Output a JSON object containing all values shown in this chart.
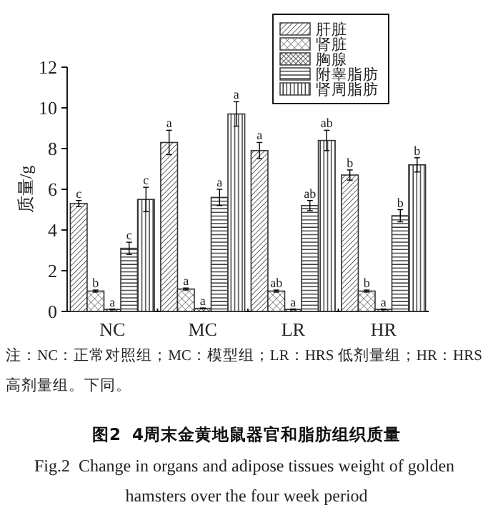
{
  "chart_data": {
    "type": "bar",
    "title": "图2  4周末金黄地鼠器官和脂肪组织质量",
    "subtitle": "Fig.2  Change in organs and adipose tissues weight of golden hamsters over the four week period",
    "ylabel": "质量/g",
    "categories": [
      "NC",
      "MC",
      "LR",
      "HR"
    ],
    "series": [
      {
        "name": "肝脏",
        "color": "#333333",
        "values": [
          5.3,
          8.3,
          7.9,
          6.7
        ],
        "errors": [
          0.15,
          0.6,
          0.4,
          0.25
        ],
        "value_labels": [
          "c",
          "a",
          "a",
          "b"
        ]
      },
      {
        "name": "肾脏",
        "color": "#333333",
        "values": [
          1.0,
          1.1,
          1.0,
          1.0
        ],
        "errors": [
          0.05,
          0.05,
          0.05,
          0.05
        ],
        "value_labels": [
          "b",
          "a",
          "ab",
          "b"
        ]
      },
      {
        "name": "胸腺",
        "color": "#333333",
        "values": [
          0.1,
          0.15,
          0.1,
          0.1
        ],
        "errors": [
          0.02,
          0.02,
          0.02,
          0.02
        ],
        "value_labels": [
          "a",
          "a",
          "a",
          "a"
        ]
      },
      {
        "name": "附睾脂肪",
        "color": "#333333",
        "values": [
          3.1,
          5.6,
          5.2,
          4.7
        ],
        "errors": [
          0.3,
          0.4,
          0.25,
          0.3
        ],
        "value_labels": [
          "c",
          "a",
          "ab",
          "b"
        ]
      },
      {
        "name": "肾周脂肪",
        "color": "#333333",
        "values": [
          5.5,
          9.7,
          8.4,
          7.2
        ],
        "errors": [
          0.6,
          0.6,
          0.5,
          0.35
        ],
        "value_labels": [
          "c",
          "a",
          "ab",
          "b"
        ]
      }
    ],
    "ylim": [
      0,
      12
    ],
    "yticks": [
      0,
      2,
      4,
      6,
      8,
      10,
      12
    ],
    "legend": "top right",
    "annotations": [
      "注：NC：正常对照组；MC：模型组；LR：HRS 低剂量组；HR：HRS 高剂量组。下同。"
    ]
  }
}
